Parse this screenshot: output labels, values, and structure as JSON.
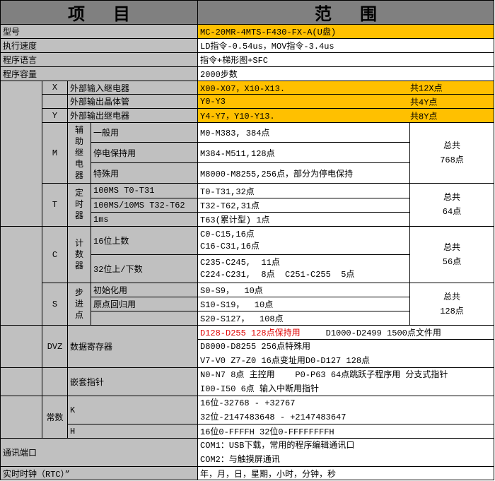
{
  "header": {
    "item": "项目",
    "range": "范围"
  },
  "colors": {
    "header": "#808080",
    "label": "#c0c0c0",
    "highlight": "#ffc000",
    "red_text": "#e00000"
  },
  "rows": {
    "model": {
      "label": "型号",
      "value": "MC-20MR-4MTS-F430-FX-A(U盘)"
    },
    "speed": {
      "label": "执行速度",
      "value": "LD指令-0.54us，MOV指令-3.4us"
    },
    "language": {
      "label": "程序语言",
      "value": "指令+梯形图+SFC"
    },
    "capacity": {
      "label": "程序容量",
      "value": "2000步数"
    },
    "x": {
      "code": "X",
      "label": "外部输入继电器",
      "value": "X00-X07，X10-X13.",
      "total": "共12X点"
    },
    "yt": {
      "label": "外部输出晶体管",
      "value": "Y0-Y3",
      "total": "共4Y点"
    },
    "y": {
      "code": "Y",
      "label": "外部输出继电器",
      "value": "Y4-Y7，Y10-Y13.",
      "total": "共8Y点"
    },
    "m": {
      "code": "M",
      "group": "辅助继电器",
      "items": [
        {
          "label": "一般用",
          "value": "M0-M383, 384点"
        },
        {
          "label": "停电保持用",
          "value": "M384-M511,128点"
        },
        {
          "label": "特殊用",
          "value": "M8000-M8255,256点，部分为停电保持"
        }
      ],
      "total1": "总共",
      "total2": "768点"
    },
    "t": {
      "code": "T",
      "group": "定时器",
      "items": [
        {
          "label": "100MS T0-T31",
          "value": "T0-T31,32点"
        },
        {
          "label": "100MS/10MS T32-T62",
          "value": "T32-T62,31点"
        },
        {
          "label": "1ms",
          "value": "T63(累计型) 1点"
        }
      ],
      "total1": "总共",
      "total2": "64点"
    },
    "c": {
      "code": "C",
      "group": "计数器",
      "items": [
        {
          "label": "16位上数",
          "value1": "C0-C15,16点",
          "value2": "C16-C31,16点"
        },
        {
          "label": "32位上/下数",
          "value1": "C235-C245,  11点",
          "value2": "C224-C231,  8点  C251-C255  5点"
        }
      ],
      "total1": "总共",
      "total2": "56点"
    },
    "s": {
      "code": "S",
      "group": "步进点",
      "items": [
        {
          "label": "初始化用",
          "value": "S0-S9，  10点"
        },
        {
          "label": "原点回归用",
          "value": "S10-S19，  10点"
        },
        {
          "label": "",
          "value": "S20-S127，  108点"
        }
      ],
      "total1": "总共",
      "total2": "128点"
    },
    "d": {
      "code": "DVZ",
      "label": "数据寄存器",
      "value1_red": "D128-D255 128点保持用",
      "value1_rest": "D1000-D2499 1500点文件用",
      "value2": "D8000-D8255 256点特殊用",
      "value3": "V7-V0 Z7-Z0 16点变址用D0-D127 128点"
    },
    "n": {
      "label": "嵌套指针",
      "value1": "N0-N7 8点 主控用    P0-P63 64点跳跃子程序用 分支式指针",
      "value2": "I00-I50 6点 输入中断用指针"
    },
    "k": {
      "code": "常数",
      "k_label": "K",
      "k1": "16位-32768 - +32767",
      "k2": "32位-2147483648 - +2147483647",
      "h_label": "H",
      "h": "16位0-FFFFH 32位0-FFFFFFFFH"
    },
    "com": {
      "label": "通讯端口",
      "value1": "COM1：USB下载，常用的程序编辑通讯口",
      "value2": "COM2：与触摸屏通讯"
    },
    "rtc": {
      "label": "实时时钟（RTC）”",
      "value": "年，月，日，星期，小时，分钟，秒"
    }
  }
}
